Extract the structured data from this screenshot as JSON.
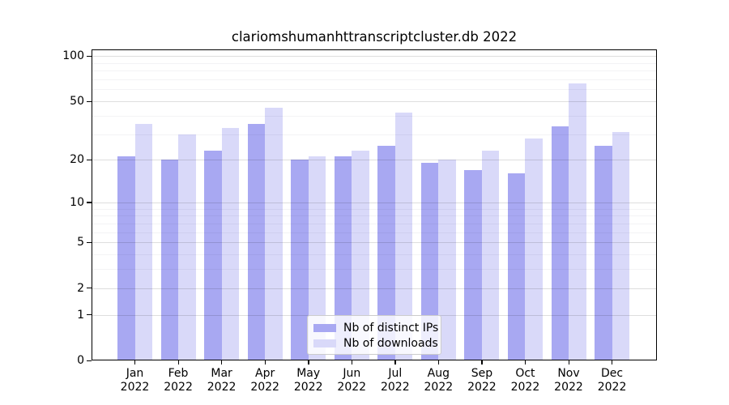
{
  "title": "clariomshumanhttranscriptcluster.db 2022",
  "colors": {
    "distinct_ips": "#a8a8f2",
    "downloads": "#d9d9f9",
    "grid_major": "#dedede",
    "grid_minor": "#f3f3f5",
    "axis": "#000000",
    "legend_border": "#cccccc"
  },
  "legend": {
    "items": [
      {
        "label": "Nb of distinct IPs",
        "color_key": "distinct_ips"
      },
      {
        "label": "Nb of downloads",
        "color_key": "downloads"
      }
    ]
  },
  "chart_data": {
    "type": "bar",
    "title": "clariomshumanhttranscriptcluster.db 2022",
    "categories": [
      "Jan 2022",
      "Feb 2022",
      "Mar 2022",
      "Apr 2022",
      "May 2022",
      "Jun 2022",
      "Jul 2022",
      "Aug 2022",
      "Sep 2022",
      "Oct 2022",
      "Nov 2022",
      "Dec 2022"
    ],
    "series": [
      {
        "name": "Nb of distinct IPs",
        "color_key": "distinct_ips",
        "values": [
          21,
          20,
          23,
          35,
          20,
          21,
          25,
          19,
          17,
          16,
          34,
          25
        ]
      },
      {
        "name": "Nb of downloads",
        "color_key": "downloads",
        "values": [
          35,
          30,
          33,
          45,
          21,
          23,
          42,
          20,
          23,
          28,
          66,
          31
        ]
      }
    ],
    "xlabel": "",
    "ylabel": "",
    "y_scale": "log10(value+1)",
    "y_ticks": [
      0,
      1,
      2,
      5,
      10,
      20,
      50,
      100
    ],
    "y_minor_ticks": [
      3,
      4,
      6,
      7,
      8,
      9,
      30,
      40,
      60,
      70,
      80,
      90
    ],
    "ylim": [
      0,
      110
    ],
    "grid": true,
    "legend_position": "lower-center"
  }
}
